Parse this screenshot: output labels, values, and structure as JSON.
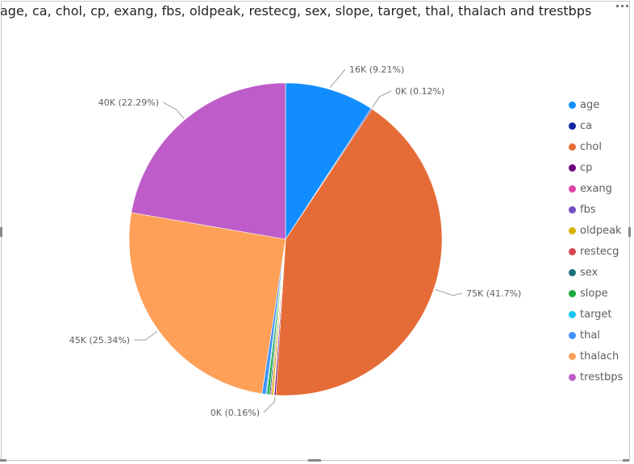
{
  "chart_data": {
    "type": "pie",
    "title": "age, ca, chol, cp, exang, fbs, oldpeak, restecg, sex, slope, target, thal, thalach and trestbps",
    "categories": [
      "age",
      "ca",
      "chol",
      "cp",
      "exang",
      "fbs",
      "oldpeak",
      "restecg",
      "sex",
      "slope",
      "target",
      "thal",
      "thalach",
      "trestbps"
    ],
    "percentages": [
      9.21,
      0.12,
      41.7,
      0.16,
      0.06,
      0.03,
      0.19,
      0.1,
      0.13,
      0.25,
      0.1,
      0.41,
      25.34,
      22.29
    ],
    "colors": [
      "#118DFF",
      "#12239E",
      "#E66C37",
      "#6B007B",
      "#E044A7",
      "#744EC2",
      "#D9B300",
      "#D64550",
      "#197278",
      "#1AAB40",
      "#15C6F4",
      "#4092FF",
      "#FFA058",
      "#BE5DC9"
    ],
    "data_labels": [
      {
        "category": "age",
        "text": "16K (9.21%)"
      },
      {
        "category": "ca",
        "text": "0K (0.12%)"
      },
      {
        "category": "chol",
        "text": "75K (41.7%)"
      },
      {
        "category": "cp",
        "text": "0K (0.16%)"
      },
      {
        "category": "thalach",
        "text": "45K (25.34%)"
      },
      {
        "category": "trestbps",
        "text": "40K (22.29%)"
      }
    ],
    "legend_position": "right"
  }
}
